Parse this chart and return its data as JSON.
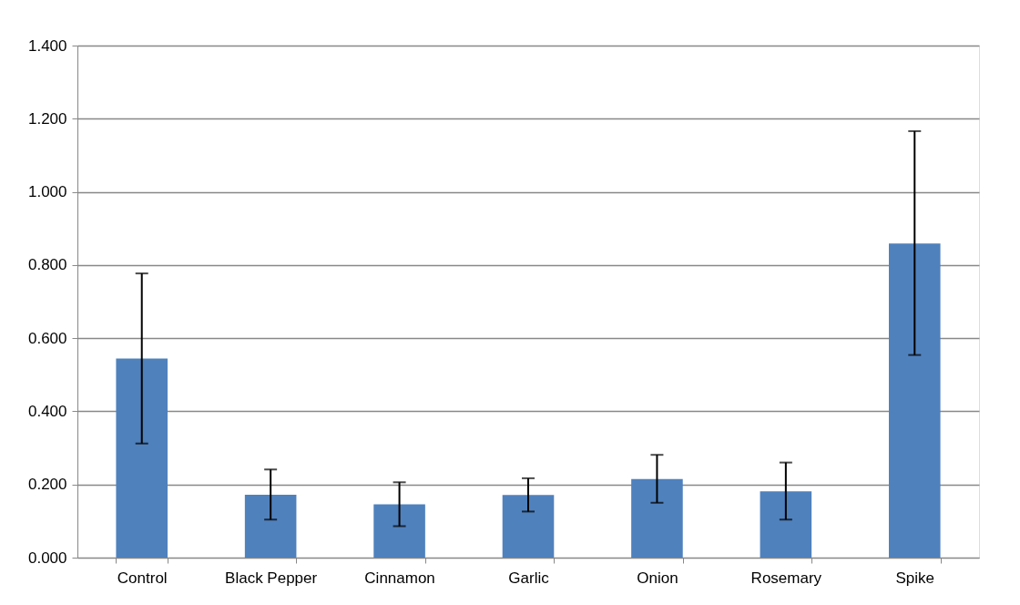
{
  "chart_data": {
    "type": "bar",
    "categories": [
      "Control",
      "Black Pepper",
      "Cinnamon",
      "Garlic",
      "Onion",
      "Rosemary",
      "Spike"
    ],
    "values": [
      0.544,
      0.172,
      0.146,
      0.171,
      0.215,
      0.181,
      0.859
    ],
    "errors": [
      [
        0.312,
        0.777
      ],
      [
        0.104,
        0.241
      ],
      [
        0.086,
        0.206
      ],
      [
        0.126,
        0.217
      ],
      [
        0.15,
        0.281
      ],
      [
        0.104,
        0.26
      ],
      [
        0.554,
        1.166
      ]
    ],
    "color": "#4f81bd",
    "ylim": [
      0,
      1.4
    ],
    "yticks": [
      {
        "value": 0,
        "label": "0.000"
      },
      {
        "value": 0.2,
        "label": "0.200"
      },
      {
        "value": 0.4,
        "label": "0.400"
      },
      {
        "value": 0.6,
        "label": "0.600"
      },
      {
        "value": 0.8,
        "label": "0.800"
      },
      {
        "value": 1.0,
        "label": "1.000"
      },
      {
        "value": 1.2,
        "label": "1.200"
      },
      {
        "value": 1.4,
        "label": "1.400"
      }
    ],
    "grid": "y"
  }
}
